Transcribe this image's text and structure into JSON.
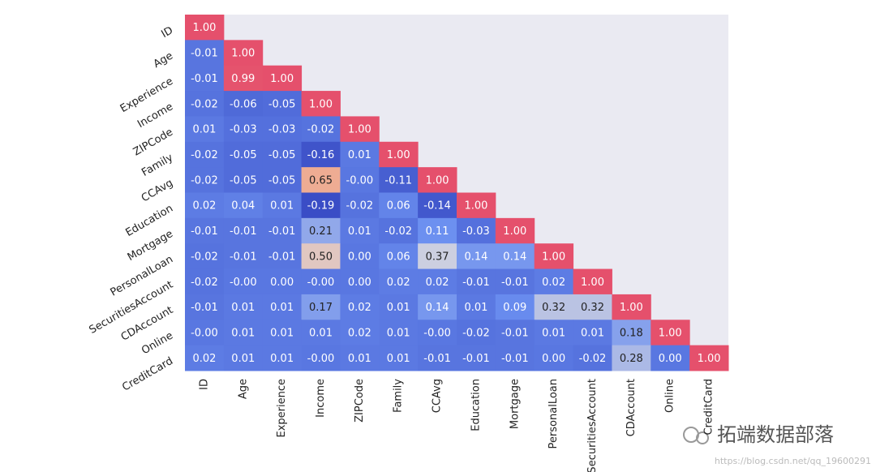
{
  "chart_data": {
    "type": "heatmap",
    "x_categories": [
      "ID",
      "Age",
      "Experience",
      "Income",
      "ZIPCode",
      "Family",
      "CCAvg",
      "Education",
      "Mortgage",
      "PersonalLoan",
      "SecuritiesAccount",
      "CDAccount",
      "Online",
      "CreditCard"
    ],
    "y_categories": [
      "ID",
      "Age",
      "Experience",
      "Income",
      "ZIPCode",
      "Family",
      "CCAvg",
      "Education",
      "Mortgage",
      "PersonalLoan",
      "SecuritiesAccount",
      "CDAccount",
      "Online",
      "CreditCard"
    ],
    "values": [
      [
        1,
        null,
        null,
        null,
        null,
        null,
        null,
        null,
        null,
        null,
        null,
        null,
        null,
        null
      ],
      [
        -0.01,
        1,
        null,
        null,
        null,
        null,
        null,
        null,
        null,
        null,
        null,
        null,
        null,
        null
      ],
      [
        -0.01,
        0.99,
        1,
        null,
        null,
        null,
        null,
        null,
        null,
        null,
        null,
        null,
        null,
        null
      ],
      [
        -0.02,
        -0.06,
        -0.05,
        1,
        null,
        null,
        null,
        null,
        null,
        null,
        null,
        null,
        null,
        null
      ],
      [
        0.01,
        -0.03,
        -0.03,
        -0.02,
        1,
        null,
        null,
        null,
        null,
        null,
        null,
        null,
        null,
        null
      ],
      [
        -0.02,
        -0.05,
        -0.05,
        -0.16,
        0.01,
        1,
        null,
        null,
        null,
        null,
        null,
        null,
        null,
        null
      ],
      [
        -0.02,
        -0.05,
        -0.05,
        0.65,
        0,
        -0.11,
        1,
        null,
        null,
        null,
        null,
        null,
        null,
        null
      ],
      [
        0.02,
        0.04,
        0.01,
        -0.19,
        -0.02,
        0.06,
        -0.14,
        1,
        null,
        null,
        null,
        null,
        null,
        null
      ],
      [
        -0.01,
        -0.01,
        -0.01,
        0.21,
        0.01,
        -0.02,
        0.11,
        -0.03,
        1,
        null,
        null,
        null,
        null,
        null
      ],
      [
        -0.02,
        -0.01,
        -0.01,
        0.5,
        0,
        0.06,
        0.37,
        0.14,
        0.14,
        1,
        null,
        null,
        null,
        null
      ],
      [
        -0.02,
        0,
        0,
        0,
        0,
        0.02,
        0.02,
        -0.01,
        -0.01,
        0.02,
        1,
        null,
        null,
        null
      ],
      [
        -0.01,
        0.01,
        0.01,
        0.17,
        0.02,
        0.01,
        0.14,
        0.01,
        0.09,
        0.32,
        0.32,
        1,
        null,
        null
      ],
      [
        0,
        0.01,
        0.01,
        0.01,
        0.02,
        0.01,
        0,
        -0.02,
        -0.01,
        0.01,
        0.01,
        0.18,
        1,
        null
      ],
      [
        0.02,
        0.01,
        0.01,
        0,
        0.01,
        0.01,
        -0.01,
        -0.01,
        -0.01,
        0,
        -0.02,
        0.28,
        0,
        1
      ]
    ],
    "value_labels": [
      [
        "1.00",
        null,
        null,
        null,
        null,
        null,
        null,
        null,
        null,
        null,
        null,
        null,
        null,
        null
      ],
      [
        "-0.01",
        "1.00",
        null,
        null,
        null,
        null,
        null,
        null,
        null,
        null,
        null,
        null,
        null,
        null
      ],
      [
        "-0.01",
        "0.99",
        "1.00",
        null,
        null,
        null,
        null,
        null,
        null,
        null,
        null,
        null,
        null,
        null
      ],
      [
        "-0.02",
        "-0.06",
        "-0.05",
        "1.00",
        null,
        null,
        null,
        null,
        null,
        null,
        null,
        null,
        null,
        null
      ],
      [
        "0.01",
        "-0.03",
        "-0.03",
        "-0.02",
        "1.00",
        null,
        null,
        null,
        null,
        null,
        null,
        null,
        null,
        null
      ],
      [
        "-0.02",
        "-0.05",
        "-0.05",
        "-0.16",
        "0.01",
        "1.00",
        null,
        null,
        null,
        null,
        null,
        null,
        null,
        null
      ],
      [
        "-0.02",
        "-0.05",
        "-0.05",
        "0.65",
        "-0.00",
        "-0.11",
        "1.00",
        null,
        null,
        null,
        null,
        null,
        null,
        null
      ],
      [
        "0.02",
        "0.04",
        "0.01",
        "-0.19",
        "-0.02",
        "0.06",
        "-0.14",
        "1.00",
        null,
        null,
        null,
        null,
        null,
        null
      ],
      [
        "-0.01",
        "-0.01",
        "-0.01",
        "0.21",
        "0.01",
        "-0.02",
        "0.11",
        "-0.03",
        "1.00",
        null,
        null,
        null,
        null,
        null
      ],
      [
        "-0.02",
        "-0.01",
        "-0.01",
        "0.50",
        "0.00",
        "0.06",
        "0.37",
        "0.14",
        "0.14",
        "1.00",
        null,
        null,
        null,
        null
      ],
      [
        "-0.02",
        "-0.00",
        "0.00",
        "-0.00",
        "0.00",
        "0.02",
        "0.02",
        "-0.01",
        "-0.01",
        "0.02",
        "1.00",
        null,
        null,
        null
      ],
      [
        "-0.01",
        "0.01",
        "0.01",
        "0.17",
        "0.02",
        "0.01",
        "0.14",
        "0.01",
        "0.09",
        "0.32",
        "0.32",
        "1.00",
        null,
        null
      ],
      [
        "-0.00",
        "0.01",
        "0.01",
        "0.01",
        "0.02",
        "0.01",
        "-0.00",
        "-0.02",
        "-0.01",
        "0.01",
        "0.01",
        "0.18",
        "1.00",
        null
      ],
      [
        "0.02",
        "0.01",
        "0.01",
        "-0.00",
        "0.01",
        "0.01",
        "-0.01",
        "-0.01",
        "-0.01",
        "0.00",
        "-0.02",
        "0.28",
        "0.00",
        "1.00"
      ]
    ],
    "colormap": [
      "#3a4dc6",
      "#6b8ff0",
      "#d9d8de",
      "#f2a383",
      "#e5506c"
    ]
  },
  "watermark": {
    "brand": "拓端数据部落",
    "url": "https://blog.csdn.net/qq_19600291"
  }
}
